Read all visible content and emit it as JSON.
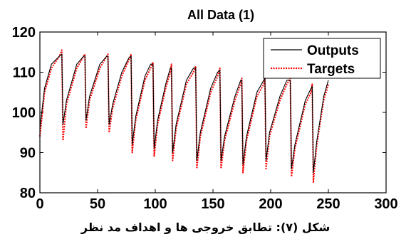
{
  "caption": "شکل (۷): تطابق خروجی ها و اهداف مد نظر",
  "chart_data": {
    "type": "line",
    "title": "All Data (1)",
    "xlabel": "",
    "ylabel": "",
    "xlim": [
      0,
      300
    ],
    "ylim": [
      80,
      120
    ],
    "xticks": [
      0,
      50,
      100,
      150,
      200,
      250,
      300
    ],
    "yticks": [
      80,
      90,
      100,
      110,
      120
    ],
    "grid": false,
    "legend": "top-right",
    "series": [
      {
        "name": "Outputs",
        "color": "#000000",
        "style": "solid",
        "x": [
          0,
          4,
          10,
          17,
          19,
          20,
          23,
          32,
          38,
          39,
          40,
          43,
          52,
          58,
          59,
          60,
          63,
          71,
          77,
          79,
          80,
          83,
          91,
          96,
          98,
          99,
          102,
          109,
          113,
          114,
          115,
          118,
          127,
          133,
          135,
          136,
          139,
          148,
          154,
          156,
          157,
          160,
          169,
          174,
          175,
          176,
          179,
          188,
          194,
          195,
          196,
          199,
          208,
          214,
          217,
          218,
          221,
          230,
          235,
          236,
          237,
          240,
          246,
          250
        ],
        "y": [
          96,
          106,
          112,
          114,
          114.5,
          97,
          103,
          112,
          114,
          114,
          98,
          104,
          112,
          114,
          114,
          97,
          102,
          110,
          113.5,
          114,
          92,
          99,
          109,
          112,
          112,
          91,
          98,
          107,
          111,
          111,
          90,
          97,
          108,
          111,
          111,
          88,
          95,
          106,
          110,
          110.5,
          88,
          94,
          104,
          108,
          108,
          87,
          94,
          105,
          108,
          108.5,
          88,
          95,
          104,
          108,
          108,
          86,
          92,
          103,
          106,
          106.5,
          85,
          93,
          104,
          108
        ]
      },
      {
        "name": "Targets",
        "color": "#ff0000",
        "style": "dotted",
        "x": [
          0,
          4,
          10,
          17,
          19,
          20,
          23,
          32,
          38,
          39,
          40,
          43,
          52,
          58,
          59,
          60,
          63,
          71,
          77,
          79,
          80,
          83,
          91,
          96,
          98,
          99,
          102,
          109,
          113,
          114,
          115,
          118,
          127,
          133,
          135,
          136,
          139,
          148,
          154,
          156,
          157,
          160,
          169,
          174,
          175,
          176,
          179,
          188,
          194,
          195,
          196,
          199,
          208,
          214,
          217,
          218,
          221,
          230,
          235,
          236,
          237,
          240,
          246,
          250
        ],
        "y": [
          94,
          105,
          111,
          114,
          115.5,
          93,
          102,
          111,
          114,
          114.5,
          96,
          103,
          111,
          114,
          114.5,
          95,
          101,
          109,
          113,
          114.5,
          90,
          98,
          108,
          111,
          112.5,
          89,
          97,
          106,
          110,
          112,
          88,
          96,
          107,
          110,
          111.5,
          86,
          94,
          105,
          109,
          111,
          86,
          93,
          103,
          107,
          108.5,
          85,
          93,
          104,
          107,
          109,
          86,
          94,
          103,
          107,
          108.5,
          84,
          91,
          102,
          105,
          107,
          82.5,
          92,
          103,
          107
        ]
      }
    ]
  }
}
